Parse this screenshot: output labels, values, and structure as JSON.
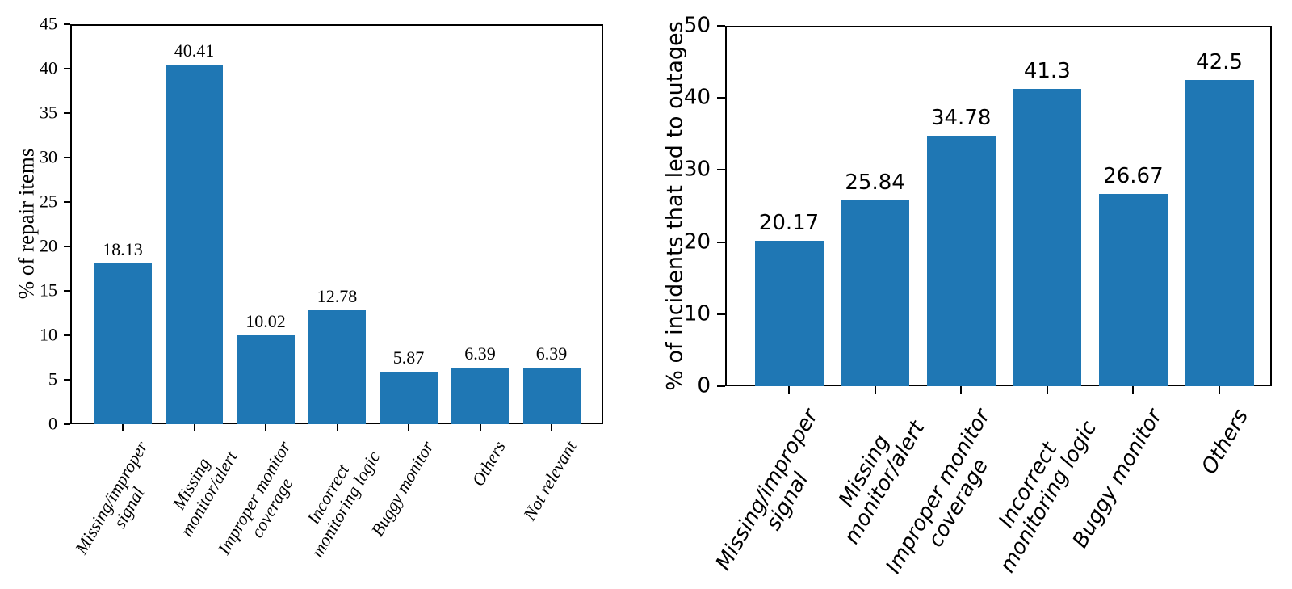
{
  "chart_data": [
    {
      "type": "bar",
      "panel": "left",
      "title": "",
      "xlabel": "",
      "ylabel": "% of repair items",
      "ylim": [
        0,
        45
      ],
      "yticks": [
        0,
        5,
        10,
        15,
        20,
        25,
        30,
        35,
        40,
        45
      ],
      "categories": [
        "Missing/improper\nsignal",
        "Missing\nmonitor/alert",
        "Improper monitor\ncoverage",
        "Incorrect\nmonitoring logic",
        "Buggy monitor",
        "Others",
        "Not relevant"
      ],
      "values": [
        18.13,
        40.41,
        10.02,
        12.78,
        5.87,
        6.39,
        6.39
      ],
      "value_labels": [
        "18.13",
        "40.41",
        "10.02",
        "12.78",
        "5.87",
        "6.39",
        "6.39"
      ],
      "bar_color": "#1f77b4",
      "axis_color": "#000000",
      "grid": false,
      "legend": null,
      "x_tick_rotation_deg": 60,
      "x_tick_style": "italic"
    },
    {
      "type": "bar",
      "panel": "right",
      "title": "",
      "xlabel": "",
      "ylabel": "% of incidents that led to outages",
      "ylim": [
        0,
        50
      ],
      "yticks": [
        0,
        10,
        20,
        30,
        40,
        50
      ],
      "categories": [
        "Missing/improper\nsignal",
        "Missing\nmonitor/alert",
        "Improper monitor\ncoverage",
        "Incorrect\nmonitoring logic",
        "Buggy monitor",
        "Others"
      ],
      "values": [
        20.17,
        25.84,
        34.78,
        41.3,
        26.67,
        42.5
      ],
      "value_labels": [
        "20.17",
        "25.84",
        "34.78",
        "41.3",
        "26.67",
        "42.5"
      ],
      "bar_color": "#1f77b4",
      "axis_color": "#000000",
      "grid": false,
      "legend": null,
      "x_tick_rotation_deg": 60,
      "x_tick_style": "italic"
    }
  ]
}
